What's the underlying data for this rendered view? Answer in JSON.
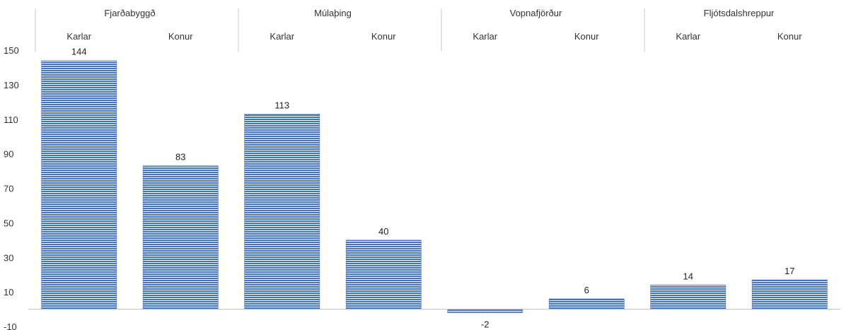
{
  "chart_data": {
    "type": "bar",
    "title": "",
    "xlabel": "",
    "ylabel": "",
    "ylim": [
      -10,
      150
    ],
    "yticks": [
      -10,
      10,
      30,
      50,
      70,
      90,
      110,
      130,
      150
    ],
    "grid": false,
    "groups": [
      {
        "name": "Fjarðabyggð",
        "categories": [
          "Karlar",
          "Konur"
        ],
        "values": [
          144,
          83
        ]
      },
      {
        "name": "Múlaþing",
        "categories": [
          "Karlar",
          "Konur"
        ],
        "values": [
          113,
          40
        ]
      },
      {
        "name": "Vopnafjörður",
        "categories": [
          "Karlar",
          "Konur"
        ],
        "values": [
          -2,
          6
        ]
      },
      {
        "name": "Fljótsdalshreppur",
        "categories": [
          "Karlar",
          "Konur"
        ],
        "values": [
          14,
          17
        ]
      }
    ],
    "bar_color": "#4472c4"
  }
}
